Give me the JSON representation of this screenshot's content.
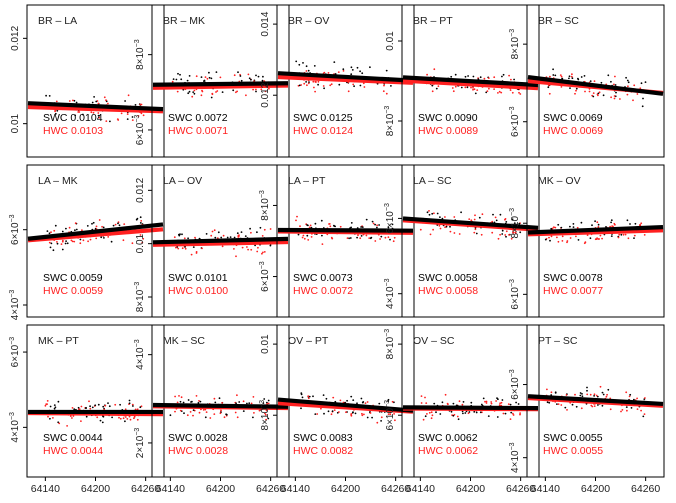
{
  "chart_data": [
    {
      "type": "scatter",
      "title": "BR – LA",
      "xlim": [
        64130,
        64270
      ],
      "ylim": [
        0.0095,
        0.0125
      ],
      "x_ticks": [],
      "y_ticks": [
        {
          "value": 0.012,
          "label": "0.012"
        },
        {
          "value": 0.01,
          "label": "0.01"
        }
      ],
      "series": [
        {
          "name": "SWC",
          "value_label": "SWC 0.0104",
          "color": "#000000",
          "trend": [
            0.01048,
            0.01034
          ]
        },
        {
          "name": "HWC",
          "value_label": "HWC 0.0103",
          "color": "#ff2020",
          "trend": [
            0.01039,
            0.01029
          ]
        }
      ]
    },
    {
      "type": "scatter",
      "title": "BR – MK",
      "xlim": [
        64130,
        64270
      ],
      "ylim": [
        0.0056,
        0.009
      ],
      "x_ticks": [],
      "y_ticks": [
        {
          "value": 0.008,
          "label_base": "8×10",
          "label_exp": "−3"
        },
        {
          "value": 0.006,
          "label_base": "6×10",
          "label_exp": "−3"
        }
      ],
      "series": [
        {
          "name": "SWC",
          "value_label": "SWC 0.0072",
          "color": "#000000",
          "trend": [
            0.0072,
            0.00724
          ]
        },
        {
          "name": "HWC",
          "value_label": "HWC 0.0071",
          "color": "#ff2020",
          "trend": [
            0.00712,
            0.00718
          ]
        }
      ]
    },
    {
      "type": "scatter",
      "title": "BR – OV",
      "xlim": [
        64130,
        64270
      ],
      "ylim": [
        0.0106,
        0.0142
      ],
      "x_ticks": [],
      "y_ticks": [
        {
          "value": 0.014,
          "label": "0.014"
        },
        {
          "value": 0.012,
          "label": "0.012"
        }
      ],
      "series": [
        {
          "name": "SWC",
          "value_label": "SWC 0.0125",
          "color": "#000000",
          "trend": [
            0.01262,
            0.01241
          ]
        },
        {
          "name": "HWC",
          "value_label": "HWC 0.0124",
          "color": "#ff2020",
          "trend": [
            0.01251,
            0.01235
          ]
        }
      ]
    },
    {
      "type": "scatter",
      "title": "BR – PT",
      "xlim": [
        64130,
        64270
      ],
      "ylim": [
        0.0074,
        0.0106
      ],
      "x_ticks": [],
      "y_ticks": [
        {
          "value": 0.01,
          "label": "0.01"
        },
        {
          "value": 0.008,
          "label_base": "8×10",
          "label_exp": "−3"
        }
      ],
      "series": [
        {
          "name": "SWC",
          "value_label": "SWC 0.0090",
          "color": "#000000",
          "trend": [
            0.00909,
            0.0089
          ]
        },
        {
          "name": "HWC",
          "value_label": "HWC 0.0089",
          "color": "#ff2020",
          "trend": [
            0.00901,
            0.00882
          ]
        }
      ]
    },
    {
      "type": "scatter",
      "title": "BR – SC",
      "xlim": [
        64130,
        64270
      ],
      "ylim": [
        0.0054,
        0.0087
      ],
      "x_ticks": [],
      "y_ticks": [
        {
          "value": 0.008,
          "label_base": "8×10",
          "label_exp": "−3"
        },
        {
          "value": 0.006,
          "label_base": "6×10",
          "label_exp": "−3"
        }
      ],
      "series": [
        {
          "name": "SWC",
          "value_label": "SWC 0.0069",
          "color": "#000000",
          "trend": [
            0.00715,
            0.00672
          ]
        },
        {
          "name": "HWC",
          "value_label": "HWC 0.0069",
          "color": "#ff2020",
          "trend": [
            0.00705,
            0.00674
          ]
        }
      ]
    },
    {
      "type": "scatter",
      "title": "LA – MK",
      "xlim": [
        64130,
        64270
      ],
      "ylim": [
        0.004,
        0.0074
      ],
      "x_ticks": [],
      "y_ticks": [
        {
          "value": 0.006,
          "label_base": "6×10",
          "label_exp": "−3"
        },
        {
          "value": 0.004,
          "label_base": "4×10",
          "label_exp": "−3"
        }
      ],
      "series": [
        {
          "name": "SWC",
          "value_label": "SWC 0.0059",
          "color": "#000000",
          "trend": [
            0.00576,
            0.00614
          ]
        },
        {
          "name": "HWC",
          "value_label": "HWC 0.0059",
          "color": "#ff2020",
          "trend": [
            0.00572,
            0.00601
          ]
        }
      ]
    },
    {
      "type": "scatter",
      "title": "LA – OV",
      "xlim": [
        64130,
        64270
      ],
      "ylim": [
        0.0077,
        0.0125
      ],
      "x_ticks": [],
      "y_ticks": [
        {
          "value": 0.012,
          "label": "0.012"
        },
        {
          "value": 0.01,
          "label": "0.01"
        },
        {
          "value": 0.008,
          "label_base": "8×10",
          "label_exp": "−3"
        }
      ],
      "series": [
        {
          "name": "SWC",
          "value_label": "SWC 0.0101",
          "color": "#000000",
          "trend": [
            0.01005,
            0.01018
          ]
        },
        {
          "name": "HWC",
          "value_label": "HWC 0.0100",
          "color": "#ff2020",
          "trend": [
            0.00996,
            0.01006
          ]
        }
      ]
    },
    {
      "type": "scatter",
      "title": "LA – PT",
      "xlim": [
        64130,
        64270
      ],
      "ylim": [
        0.0052,
        0.0088
      ],
      "x_ticks": [],
      "y_ticks": [
        {
          "value": 0.008,
          "label_base": "8×10",
          "label_exp": "−3"
        },
        {
          "value": 0.006,
          "label_base": "6×10",
          "label_exp": "−3"
        }
      ],
      "series": [
        {
          "name": "SWC",
          "value_label": "SWC 0.0073",
          "color": "#000000",
          "trend": [
            0.00731,
            0.00729
          ]
        },
        {
          "name": "HWC",
          "value_label": "HWC 0.0072",
          "color": "#ff2020",
          "trend": [
            0.00727,
            0.00723
          ]
        }
      ]
    },
    {
      "type": "scatter",
      "title": "LA – SC",
      "xlim": [
        64130,
        64270
      ],
      "ylim": [
        0.0037,
        0.0071
      ],
      "x_ticks": [],
      "y_ticks": [
        {
          "value": 0.006,
          "label_base": "6×10",
          "label_exp": "−3"
        },
        {
          "value": 0.004,
          "label_base": "4×10",
          "label_exp": "−3"
        }
      ],
      "series": [
        {
          "name": "SWC",
          "value_label": "SWC 0.0058",
          "color": "#000000",
          "trend": [
            0.006,
            0.00575
          ]
        },
        {
          "name": "HWC",
          "value_label": "HWC 0.0058",
          "color": "#ff2020",
          "trend": [
            0.00595,
            0.0057
          ]
        }
      ]
    },
    {
      "type": "scatter",
      "title": "MK – OV",
      "xlim": [
        64130,
        64270
      ],
      "ylim": [
        0.0057,
        0.0093
      ],
      "x_ticks": [],
      "y_ticks": [
        {
          "value": 0.008,
          "label_base": "8×10",
          "label_exp": "−3"
        },
        {
          "value": 0.006,
          "label_base": "6×10",
          "label_exp": "−3"
        }
      ],
      "series": [
        {
          "name": "SWC",
          "value_label": "SWC 0.0078",
          "color": "#000000",
          "trend": [
            0.00774,
            0.00789
          ]
        },
        {
          "name": "HWC",
          "value_label": "HWC 0.0077",
          "color": "#ff2020",
          "trend": [
            0.00769,
            0.0078
          ]
        }
      ]
    },
    {
      "type": "scatter",
      "title": "MK – PT",
      "xlim": [
        64130,
        64270
      ],
      "ylim": [
        0.003,
        0.0064
      ],
      "x_ticks": [
        64140,
        64200,
        64260
      ],
      "y_ticks": [
        {
          "value": 0.006,
          "label_base": "6×10",
          "label_exp": "−3"
        },
        {
          "value": 0.004,
          "label_base": "4×10",
          "label_exp": "−3"
        }
      ],
      "series": [
        {
          "name": "SWC",
          "value_label": "SWC 0.0044",
          "color": "#000000",
          "trend": [
            0.00441,
            0.00441
          ]
        },
        {
          "name": "HWC",
          "value_label": "HWC 0.0044",
          "color": "#ff2020",
          "trend": [
            0.00438,
            0.00435
          ]
        }
      ]
    },
    {
      "type": "scatter",
      "title": "MK – SC",
      "xlim": [
        64130,
        64270
      ],
      "ylim": [
        0.0015,
        0.0044
      ],
      "x_ticks": [
        64140,
        64200,
        64260
      ],
      "y_ticks": [
        {
          "value": 0.004,
          "label_base": "4×10",
          "label_exp": "−3"
        },
        {
          "value": 0.002,
          "label_base": "2×10",
          "label_exp": "−3"
        }
      ],
      "series": [
        {
          "name": "SWC",
          "value_label": "SWC 0.0028",
          "color": "#000000",
          "trend": [
            0.00286,
            0.00282
          ]
        },
        {
          "name": "HWC",
          "value_label": "HWC 0.0028",
          "color": "#ff2020",
          "trend": [
            0.00283,
            0.00279
          ]
        }
      ]
    },
    {
      "type": "scatter",
      "title": "OV – PT",
      "xlim": [
        64130,
        64270
      ],
      "ylim": [
        0.0066,
        0.0102
      ],
      "x_ticks": [
        64140,
        64200,
        64260
      ],
      "y_ticks": [
        {
          "value": 0.01,
          "label": "0.01"
        },
        {
          "value": 0.008,
          "label_base": "8×10",
          "label_exp": "−3"
        }
      ],
      "series": [
        {
          "name": "SWC",
          "value_label": "SWC 0.0083",
          "color": "#000000",
          "trend": [
            0.00844,
            0.00813
          ]
        },
        {
          "name": "HWC",
          "value_label": "HWC 0.0082",
          "color": "#ff2020",
          "trend": [
            0.00834,
            0.0081
          ]
        }
      ]
    },
    {
      "type": "scatter",
      "title": "OV – SC",
      "xlim": [
        64130,
        64270
      ],
      "ylim": [
        0.0046,
        0.0082
      ],
      "x_ticks": [
        64140,
        64200,
        64260
      ],
      "y_ticks": [
        {
          "value": 0.008,
          "label_base": "8×10",
          "label_exp": "−3"
        },
        {
          "value": 0.006,
          "label_base": "6×10",
          "label_exp": "−3"
        }
      ],
      "series": [
        {
          "name": "SWC",
          "value_label": "SWC 0.0062",
          "color": "#000000",
          "trend": [
            0.00622,
            0.0062
          ]
        },
        {
          "name": "HWC",
          "value_label": "HWC 0.0062",
          "color": "#ff2020",
          "trend": [
            0.00619,
            0.00617
          ]
        }
      ]
    },
    {
      "type": "scatter",
      "title": "PT – SC",
      "xlim": [
        64130,
        64270
      ],
      "ylim": [
        0.0038,
        0.0073
      ],
      "x_ticks": [
        64140,
        64200,
        64260
      ],
      "y_ticks": [
        {
          "value": 0.006,
          "label_base": "6×10",
          "label_exp": "−3"
        },
        {
          "value": 0.004,
          "label_base": "4×10",
          "label_exp": "−3"
        }
      ],
      "series": [
        {
          "name": "SWC",
          "value_label": "SWC 0.0055",
          "color": "#000000",
          "trend": [
            0.00568,
            0.00547
          ]
        },
        {
          "name": "HWC",
          "value_label": "HWC 0.0055",
          "color": "#ff2020",
          "trend": [
            0.00563,
            0.00542
          ]
        }
      ]
    }
  ],
  "colors": {
    "swc": "#000000",
    "hwc": "#ff2020",
    "axis": "#000000",
    "background": "#ffffff"
  }
}
